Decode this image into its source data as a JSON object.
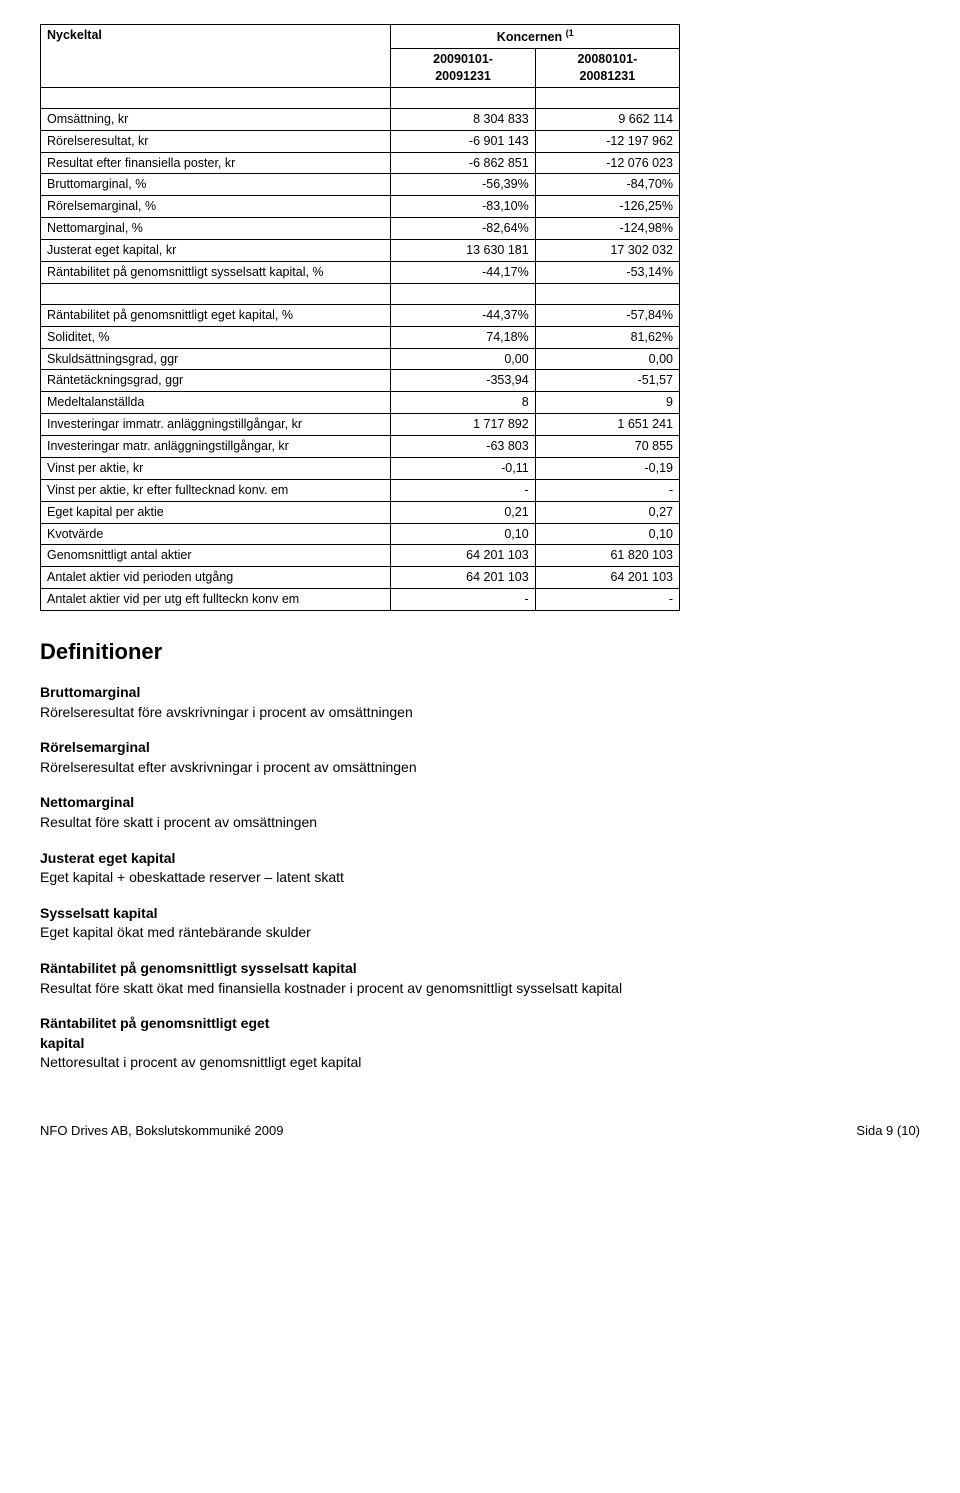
{
  "table": {
    "title": "Nyckeltal",
    "group_label": "Koncernen",
    "group_sup": "(1",
    "col1": "20090101-20091231",
    "col2": "20080101-20081231",
    "rows1": [
      {
        "label": "Omsättning, kr",
        "v1": "8 304 833",
        "v2": "9 662 114"
      },
      {
        "label": "Rörelseresultat, kr",
        "v1": "-6 901 143",
        "v2": "-12 197 962"
      },
      {
        "label": "Resultat efter finansiella poster, kr",
        "v1": "-6 862 851",
        "v2": "-12 076 023"
      },
      {
        "label": "Bruttomarginal, %",
        "v1": "-56,39%",
        "v2": "-84,70%"
      },
      {
        "label": "Rörelsemarginal, %",
        "v1": "-83,10%",
        "v2": "-126,25%"
      },
      {
        "label": "Nettomarginal, %",
        "v1": "-82,64%",
        "v2": "-124,98%"
      },
      {
        "label": "Justerat eget kapital, kr",
        "v1": "13 630 181",
        "v2": "17 302 032"
      },
      {
        "label": "Räntabilitet på genomsnittligt sysselsatt kapital, %",
        "v1": "-44,17%",
        "v2": "-53,14%"
      }
    ],
    "rows2": [
      {
        "label": "Räntabilitet på genomsnittligt eget kapital, %",
        "v1": "-44,37%",
        "v2": "-57,84%"
      },
      {
        "label": "Soliditet, %",
        "v1": "74,18%",
        "v2": "81,62%"
      },
      {
        "label": "Skuldsättningsgrad, ggr",
        "v1": "0,00",
        "v2": "0,00"
      },
      {
        "label": "Räntetäckningsgrad, ggr",
        "v1": "-353,94",
        "v2": "-51,57"
      },
      {
        "label": "Medeltalanställda",
        "v1": "8",
        "v2": "9"
      },
      {
        "label": "Investeringar immatr. anläggningstillgångar, kr",
        "v1": "1 717 892",
        "v2": "1 651 241"
      },
      {
        "label": "Investeringar matr. anläggningstillgångar, kr",
        "v1": "-63 803",
        "v2": "70 855"
      },
      {
        "label": "Vinst per aktie, kr",
        "v1": "-0,11",
        "v2": "-0,19"
      },
      {
        "label": "Vinst per aktie, kr efter fulltecknad konv. em",
        "v1": "-",
        "v2": "-"
      },
      {
        "label": "Eget kapital per aktie",
        "v1": "0,21",
        "v2": "0,27"
      },
      {
        "label": "Kvotvärde",
        "v1": "0,10",
        "v2": "0,10"
      },
      {
        "label": "Genomsnittligt antal aktier",
        "v1": "64 201 103",
        "v2": "61 820 103"
      },
      {
        "label": "Antalet aktier vid perioden utgång",
        "v1": "64 201 103",
        "v2": "64 201 103"
      },
      {
        "label": "Antalet aktier vid per utg eft fullteckn konv em",
        "v1": "-",
        "v2": "-"
      }
    ]
  },
  "definitions": {
    "title": "Definitioner",
    "items": [
      {
        "term": "Bruttomarginal",
        "desc": "Rörelseresultat före avskrivningar i procent av omsättningen"
      },
      {
        "term": "Rörelsemarginal",
        "desc": "Rörelseresultat efter avskrivningar i procent av omsättningen"
      },
      {
        "term": "Nettomarginal",
        "desc": "Resultat före skatt i procent av omsättningen"
      },
      {
        "term": "Justerat eget kapital",
        "desc": "Eget kapital + obeskattade reserver – latent skatt"
      },
      {
        "term": "Sysselsatt kapital",
        "desc": "Eget kapital ökat med räntebärande skulder"
      },
      {
        "term": "Räntabilitet på genomsnittligt sysselsatt kapital",
        "desc": "Resultat före skatt ökat med finansiella kostnader i procent av genomsnittligt sysselsatt kapital"
      },
      {
        "term": "Räntabilitet på genomsnittligt eget kapital",
        "desc": "Nettoresultat i procent av genomsnittligt eget kapital"
      }
    ]
  },
  "footer": {
    "left": "NFO Drives AB, Bokslutskommuniké 2009",
    "right": "Sida 9 (10)"
  }
}
